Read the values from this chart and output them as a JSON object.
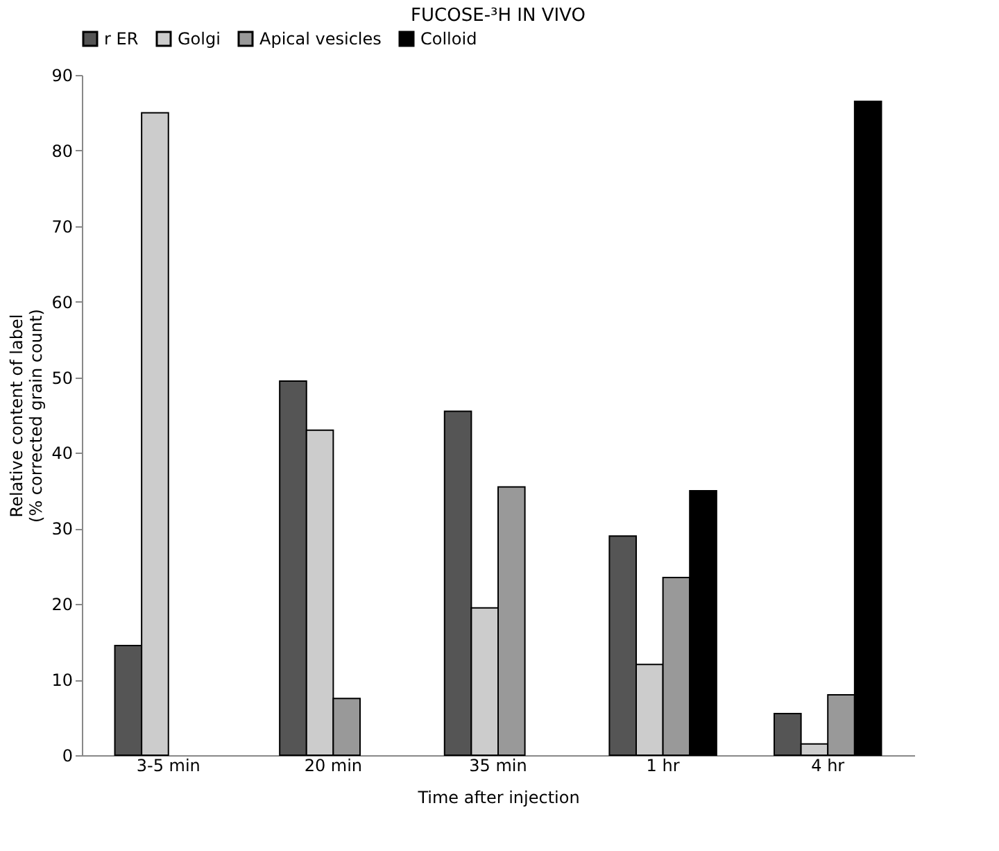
{
  "chart_data": {
    "type": "bar",
    "title": "FUCOSE-³H IN VIVO",
    "xlabel": "Time after injection",
    "ylabel": "Relative content of label\n(% corrected grain count)",
    "categories": [
      "3-5 min",
      "20 min",
      "35 min",
      "1 hr",
      "4 hr"
    ],
    "series": [
      {
        "name": "r ER",
        "color": "#555555",
        "values": [
          14.5,
          49.5,
          45.5,
          29,
          5.5
        ]
      },
      {
        "name": "Golgi",
        "color": "#cccccc",
        "values": [
          85,
          43,
          19.5,
          12,
          1.5
        ]
      },
      {
        "name": "Apical vesicles",
        "color": "#999999",
        "values": [
          null,
          7.5,
          35.5,
          23.5,
          8
        ]
      },
      {
        "name": "Colloid",
        "color": "#000000",
        "values": [
          null,
          null,
          null,
          35,
          86.5
        ]
      }
    ],
    "ylim": [
      0,
      90
    ],
    "yticks": [
      0,
      10,
      20,
      30,
      40,
      50,
      60,
      70,
      80,
      90
    ],
    "grid": false,
    "legend": "top"
  }
}
